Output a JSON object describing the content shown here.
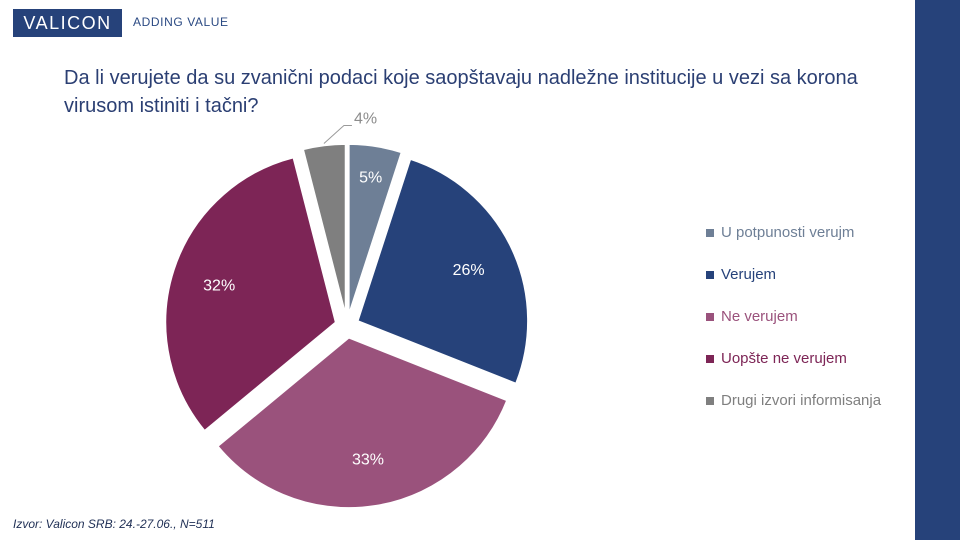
{
  "header": {
    "logo": "VALICON",
    "tagline": "ADDING VALUE"
  },
  "title": "Da li verujete da su zvanični podaci koje saopštavaju nadležne institucije u vezi sa korona virusom istiniti i tačni?",
  "footer": "Izvor: Valicon SRB: 24.-27.06., N=511",
  "chart_data": {
    "type": "pie",
    "title": "",
    "slices": [
      {
        "label": "U potpunosti verujm",
        "value": 5,
        "data_label": "5%",
        "color": "#6e7f96",
        "legend_color": "#6e7f96"
      },
      {
        "label": "Verujem",
        "value": 26,
        "data_label": "26%",
        "color": "#26427a",
        "legend_color": "#26427a"
      },
      {
        "label": "Ne verujem",
        "value": 33,
        "data_label": "33%",
        "color": "#9a527c",
        "legend_color": "#9a527c"
      },
      {
        "label": "Uopšte ne verujem",
        "value": 32,
        "data_label": "32%",
        "color": "#7d2556",
        "legend_color": "#7d2556"
      },
      {
        "label": "Drugi izvori informisanja",
        "value": 4,
        "data_label": "4%",
        "color": "#7f7f7f",
        "legend_color": "#7f7f7f"
      }
    ],
    "exploded": true,
    "legend_position": "right"
  }
}
